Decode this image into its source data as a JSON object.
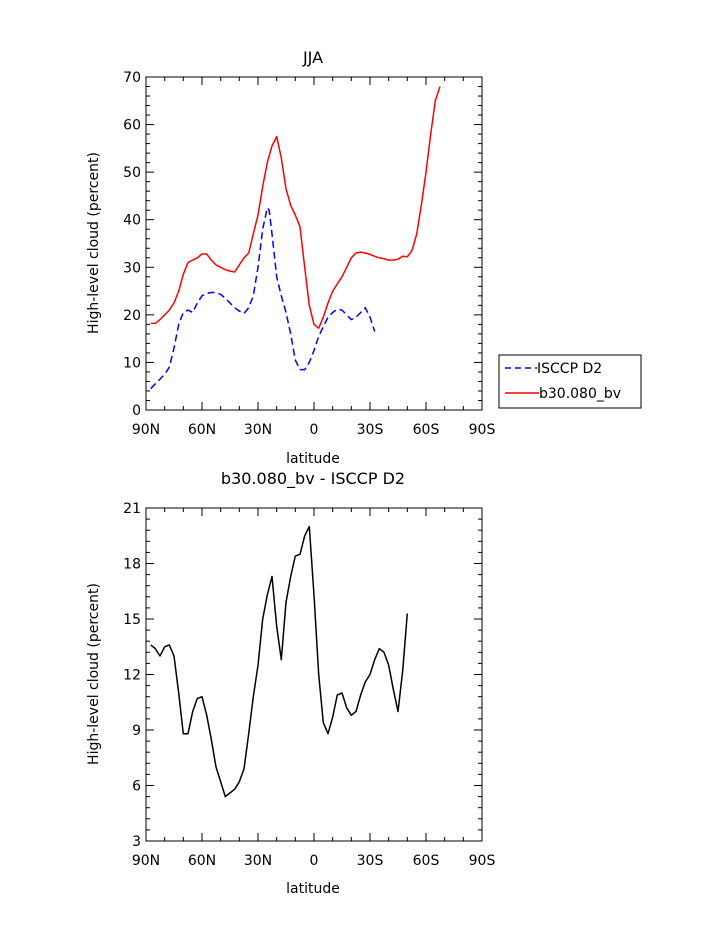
{
  "chart_data": [
    {
      "type": "line",
      "title": "JJA",
      "xlabel": "latitude",
      "ylabel": "High-level cloud (percent)",
      "xlim": [
        -90,
        90
      ],
      "ylim": [
        0,
        70
      ],
      "x_tick_values": [
        -90,
        -60,
        -30,
        0,
        30,
        60,
        90
      ],
      "x_tick_labels": [
        "90N",
        "60N",
        "30N",
        "0",
        "30S",
        "60S",
        "90S"
      ],
      "y_tick_values": [
        0,
        10,
        20,
        30,
        40,
        50,
        60,
        70
      ],
      "y_tick_labels": [
        "0",
        "10",
        "20",
        "30",
        "40",
        "50",
        "60",
        "70"
      ],
      "legend_position": "right",
      "series": [
        {
          "name": "ISCCP D2",
          "color": "#0000ff",
          "dash": "dashed",
          "points": [
            [
              -87.5,
              4.5
            ],
            [
              -85,
              5.5
            ],
            [
              -82.5,
              6.5
            ],
            [
              -80,
              7.5
            ],
            [
              -77.5,
              9
            ],
            [
              -75,
              13
            ],
            [
              -72.5,
              18
            ],
            [
              -70,
              20.5
            ],
            [
              -67.5,
              21
            ],
            [
              -65,
              20.5
            ],
            [
              -62.5,
              22.5
            ],
            [
              -60,
              24
            ],
            [
              -57.5,
              24.5
            ],
            [
              -55,
              24.7
            ],
            [
              -52.5,
              24.7
            ],
            [
              -50,
              24.3
            ],
            [
              -47.5,
              23.5
            ],
            [
              -45,
              22.5
            ],
            [
              -42.5,
              21.5
            ],
            [
              -40,
              20.8
            ],
            [
              -37.5,
              20.3
            ],
            [
              -35,
              21.5
            ],
            [
              -32.5,
              24
            ],
            [
              -30,
              30
            ],
            [
              -27.5,
              38
            ],
            [
              -25,
              42.5
            ],
            [
              -24,
              42
            ],
            [
              -22.5,
              37
            ],
            [
              -20,
              28
            ],
            [
              -17.5,
              24
            ],
            [
              -15,
              20.5
            ],
            [
              -12.5,
              16
            ],
            [
              -10,
              10.5
            ],
            [
              -7.5,
              8.5
            ],
            [
              -5,
              8.5
            ],
            [
              -2.5,
              10
            ],
            [
              0,
              12.5
            ],
            [
              2.5,
              15.5
            ],
            [
              5,
              17.5
            ],
            [
              7.5,
              19.5
            ],
            [
              10,
              20.5
            ],
            [
              12.5,
              21.2
            ],
            [
              15,
              21
            ],
            [
              17.5,
              20
            ],
            [
              20,
              19
            ],
            [
              22.5,
              19.5
            ],
            [
              25,
              20.5
            ],
            [
              27.5,
              21.5
            ],
            [
              30,
              19.5
            ],
            [
              32.5,
              16.5
            ]
          ]
        },
        {
          "name": "b30.080_bv",
          "color": "#ff0000",
          "dash": "solid",
          "points": [
            [
              -87.5,
              18.2
            ],
            [
              -85,
              18.2
            ],
            [
              -82.5,
              19
            ],
            [
              -80,
              20
            ],
            [
              -77.5,
              21
            ],
            [
              -75,
              22.5
            ],
            [
              -72.5,
              25
            ],
            [
              -70,
              28.5
            ],
            [
              -67.5,
              31
            ],
            [
              -65,
              31.5
            ],
            [
              -62.5,
              32
            ],
            [
              -60,
              32.8
            ],
            [
              -57.5,
              32.8
            ],
            [
              -55,
              31.5
            ],
            [
              -52.5,
              30.5
            ],
            [
              -50,
              30
            ],
            [
              -47.5,
              29.5
            ],
            [
              -45,
              29.2
            ],
            [
              -42.5,
              29
            ],
            [
              -40,
              30.5
            ],
            [
              -37.5,
              32
            ],
            [
              -35,
              33
            ],
            [
              -32.5,
              37
            ],
            [
              -30,
              41
            ],
            [
              -27.5,
              47
            ],
            [
              -25,
              52
            ],
            [
              -22.5,
              55.5
            ],
            [
              -20,
              57.5
            ],
            [
              -17.5,
              53
            ],
            [
              -15,
              46.5
            ],
            [
              -12.5,
              43
            ],
            [
              -10,
              41
            ],
            [
              -7.5,
              38.5
            ],
            [
              -5,
              30
            ],
            [
              -2.5,
              22
            ],
            [
              0,
              18
            ],
            [
              2.5,
              17.2
            ],
            [
              5,
              19.5
            ],
            [
              7.5,
              22.5
            ],
            [
              10,
              25
            ],
            [
              12.5,
              26.5
            ],
            [
              15,
              28
            ],
            [
              17.5,
              30
            ],
            [
              20,
              32
            ],
            [
              22.5,
              33
            ],
            [
              25,
              33.2
            ],
            [
              27.5,
              33
            ],
            [
              30,
              32.7
            ],
            [
              32.5,
              32.3
            ],
            [
              35,
              32
            ],
            [
              37.5,
              31.8
            ],
            [
              40,
              31.5
            ],
            [
              42.5,
              31.5
            ],
            [
              45,
              31.7
            ],
            [
              47.5,
              32.3
            ],
            [
              50,
              32.2
            ],
            [
              52.5,
              33.5
            ],
            [
              55,
              37
            ],
            [
              57.5,
              43
            ],
            [
              60,
              50
            ],
            [
              62.5,
              58
            ],
            [
              65,
              65
            ],
            [
              67.5,
              68
            ]
          ]
        }
      ]
    },
    {
      "type": "line",
      "title": "b30.080_bv - ISCCP D2",
      "xlabel": "latitude",
      "ylabel": "High-level cloud (percent)",
      "xlim": [
        -90,
        90
      ],
      "ylim": [
        3,
        21
      ],
      "x_tick_values": [
        -90,
        -60,
        -30,
        0,
        30,
        60,
        90
      ],
      "x_tick_labels": [
        "90N",
        "60N",
        "30N",
        "0",
        "30S",
        "60S",
        "90S"
      ],
      "y_tick_values": [
        3,
        6,
        9,
        12,
        15,
        18,
        21
      ],
      "y_tick_labels": [
        "3",
        "6",
        "9",
        "12",
        "15",
        "18",
        "21"
      ],
      "series": [
        {
          "color": "#000000",
          "dash": "solid",
          "points": [
            [
              -87.5,
              13.6
            ],
            [
              -85,
              13.4
            ],
            [
              -82.5,
              13
            ],
            [
              -80,
              13.5
            ],
            [
              -77.5,
              13.6
            ],
            [
              -75,
              13
            ],
            [
              -72.5,
              11
            ],
            [
              -70,
              8.8
            ],
            [
              -67.5,
              8.8
            ],
            [
              -65,
              10
            ],
            [
              -62.5,
              10.7
            ],
            [
              -60,
              10.8
            ],
            [
              -57.5,
              9.8
            ],
            [
              -55,
              8.5
            ],
            [
              -52.5,
              7
            ],
            [
              -50,
              6.2
            ],
            [
              -47.5,
              5.4
            ],
            [
              -45,
              5.6
            ],
            [
              -42.5,
              5.8
            ],
            [
              -40,
              6.2
            ],
            [
              -37.5,
              6.9
            ],
            [
              -35,
              8.8
            ],
            [
              -32.5,
              10.8
            ],
            [
              -30,
              12.5
            ],
            [
              -27.5,
              15
            ],
            [
              -25,
              16.3
            ],
            [
              -22.5,
              17.3
            ],
            [
              -20,
              14.6
            ],
            [
              -17.5,
              12.8
            ],
            [
              -15,
              15.9
            ],
            [
              -12.5,
              17.3
            ],
            [
              -10,
              18.4
            ],
            [
              -7.5,
              18.5
            ],
            [
              -5,
              19.5
            ],
            [
              -2.5,
              20
            ],
            [
              0,
              16.3
            ],
            [
              2.5,
              12
            ],
            [
              5,
              9.4
            ],
            [
              7.5,
              8.8
            ],
            [
              10,
              9.7
            ],
            [
              12.5,
              10.9
            ],
            [
              15,
              11
            ],
            [
              17.5,
              10.2
            ],
            [
              20,
              9.8
            ],
            [
              22.5,
              10
            ],
            [
              25,
              10.9
            ],
            [
              27.5,
              11.6
            ],
            [
              30,
              12
            ],
            [
              32.5,
              12.8
            ],
            [
              35,
              13.4
            ],
            [
              37.5,
              13.2
            ],
            [
              40,
              12.5
            ],
            [
              42.5,
              11.2
            ],
            [
              45,
              10
            ],
            [
              47.5,
              12.2
            ],
            [
              50,
              15.3
            ]
          ]
        }
      ]
    }
  ]
}
